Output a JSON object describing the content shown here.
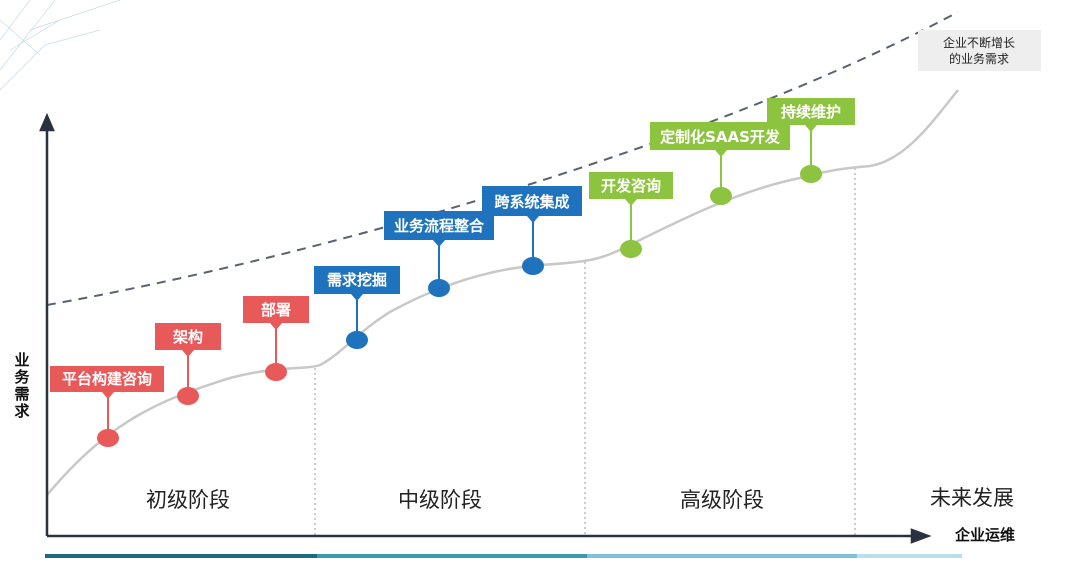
{
  "diagram": {
    "y_axis_label": [
      "业",
      "务",
      "需",
      "求"
    ],
    "x_axis_label": "企业运维",
    "future_note": [
      "企业不断增长",
      "的业务需求"
    ],
    "colors": {
      "red": "#E8595A",
      "blue": "#1F73BE",
      "green": "#8DC43F",
      "curve": "#c8c8c8",
      "dashed": "#5a6270",
      "axis": "#2a3140"
    },
    "stages": [
      {
        "label": "初级阶段"
      },
      {
        "label": "中级阶段"
      },
      {
        "label": "高级阶段"
      },
      {
        "label": "未来发展"
      }
    ],
    "milestones": [
      {
        "label": "平台构建咨询",
        "color": "red"
      },
      {
        "label": "架构",
        "color": "red"
      },
      {
        "label": "部署",
        "color": "red"
      },
      {
        "label": "需求挖掘",
        "color": "blue"
      },
      {
        "label": "业务流程整合",
        "color": "blue"
      },
      {
        "label": "跨系统集成",
        "color": "blue"
      },
      {
        "label": "开发咨询",
        "color": "green"
      },
      {
        "label": "定制化SAAS开发",
        "color": "green"
      },
      {
        "label": "持续维护",
        "color": "green"
      }
    ],
    "bottom_bar_colors": [
      "#1e6b80",
      "#3b9ab2",
      "#7fc1d8",
      "#b9dfec"
    ]
  }
}
